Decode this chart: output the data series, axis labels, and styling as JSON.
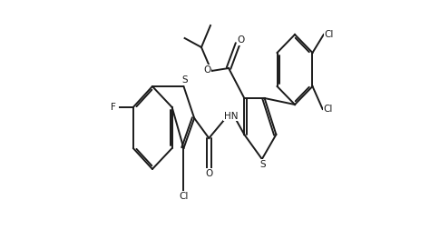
{
  "bg_color": "#ffffff",
  "line_color": "#1a1a1a",
  "line_width": 1.4,
  "font_size": 7.5,
  "figsize": [
    4.74,
    2.64
  ],
  "dpi": 100,
  "xlim": [
    0.0,
    1.0
  ],
  "ylim": [
    0.0,
    1.0
  ]
}
